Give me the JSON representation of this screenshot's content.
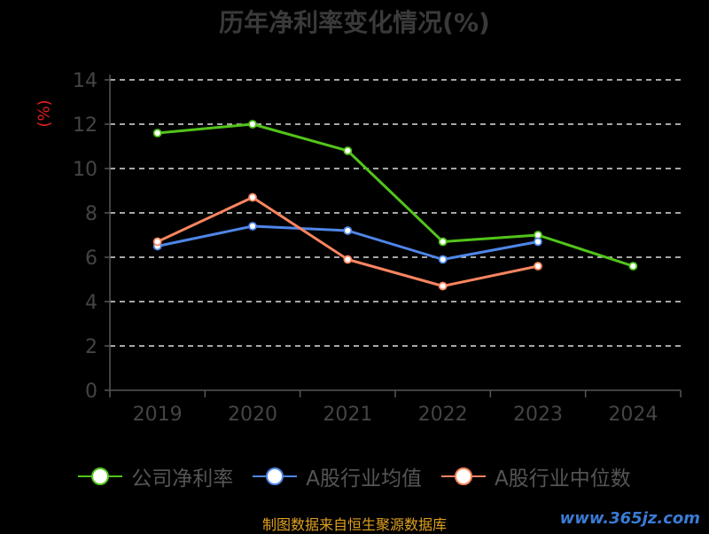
{
  "chart_data": {
    "type": "line",
    "title": "历年净利率变化情况(%)",
    "ylabel": "(%)",
    "xlabel": "",
    "categories": [
      "2019",
      "2020",
      "2021",
      "2022",
      "2023",
      "2024"
    ],
    "ylim": [
      0,
      14
    ],
    "yticks": [
      0,
      2,
      4,
      6,
      8,
      10,
      12,
      14
    ],
    "grid": true,
    "legend_position": "bottom",
    "series": [
      {
        "name": "公司净利率",
        "color": "#52c41a",
        "values": [
          11.6,
          12.0,
          10.8,
          6.7,
          7.0,
          5.6
        ]
      },
      {
        "name": "A股行业均值",
        "color": "#4f86e8",
        "values": [
          6.5,
          7.4,
          7.2,
          5.9,
          6.7,
          null
        ]
      },
      {
        "name": "A股行业中位数",
        "color": "#fa8560",
        "values": [
          6.7,
          8.7,
          5.9,
          4.7,
          5.6,
          null
        ]
      }
    ]
  },
  "footer": {
    "source": "制图数据来自恒生聚源数据库",
    "watermark": "www.365jz.com"
  }
}
